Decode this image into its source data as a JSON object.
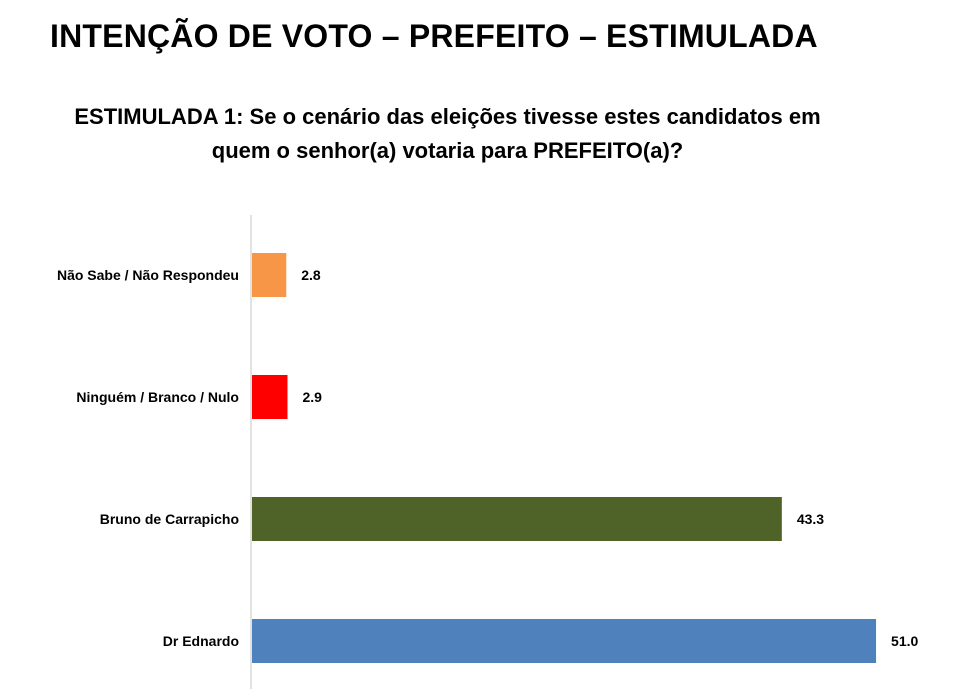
{
  "header": {
    "title": "INTENÇÃO DE VOTO – PREFEITO – ESTIMULADA",
    "question_line1": "ESTIMULADA 1: Se o cenário das eleições tivesse estes candidatos em",
    "question_line2": "quem o senhor(a) votaria para PREFEITO(a)?"
  },
  "chart_data": {
    "type": "bar",
    "orientation": "horizontal",
    "categories": [
      "Não Sabe / Não Respondeu",
      "Ninguém / Branco / Nulo",
      "Bruno de Carrapicho",
      "Dr Ednardo"
    ],
    "values": [
      2.8,
      2.9,
      43.3,
      51.0
    ],
    "value_labels": [
      "2.8",
      "2.9",
      "43.3",
      "51.0"
    ],
    "colors": [
      "#F79646",
      "#FF0000",
      "#4F6228",
      "#4F81BD"
    ],
    "xlim": [
      0,
      55
    ],
    "grid": false,
    "legend": "none"
  }
}
